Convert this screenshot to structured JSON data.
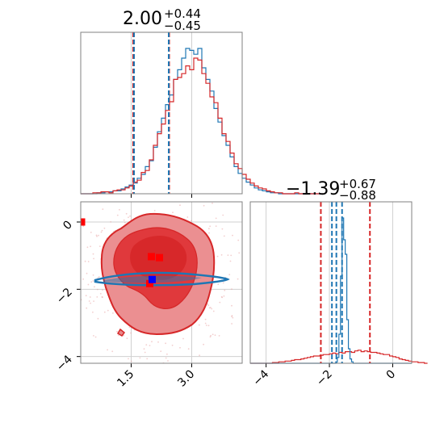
{
  "chart_data": {
    "type": "corner",
    "colors": {
      "red": "#d62728",
      "red_fill": "#e8888a",
      "red_mid": "#e04548",
      "blue": "#1f77b4",
      "marker_red": "#ff0000",
      "marker_blue": "#0000ff",
      "grid": "#d0d0d0"
    },
    "panels": [
      {
        "id": "hist_param1",
        "type": "histogram",
        "title": {
          "main": "2.00",
          "sup": "+0.44",
          "sub": "−0.45"
        },
        "xlim": [
          0.25,
          4.25
        ],
        "xticks": [
          1.5,
          3.0
        ],
        "quantile_lines": {
          "red": [
            1.55,
            2.44
          ],
          "blue": [
            1.57,
            2.43
          ]
        },
        "series": [
          {
            "name": "",
            "color": "#d62728",
            "bins_start": 0.25,
            "bin_width": 0.1,
            "heights": [
              0,
              0,
              0,
              1,
              1,
              2,
              2,
              1,
              3,
              4,
              4,
              6,
              8,
              12,
              14,
              22,
              24,
              35,
              50,
              62,
              72,
              86,
              95,
              118,
              120,
              124,
              132,
              128,
              140,
              138,
              124,
              114,
              100,
              94,
              78,
              62,
              54,
              42,
              31,
              26,
              20,
              15,
              11,
              8,
              6,
              5,
              3,
              2,
              1,
              1,
              0,
              0,
              0,
              1,
              0,
              0,
              0,
              0,
              0,
              0
            ]
          },
          {
            "name": "",
            "color": "#1f77b4",
            "bins_start": 0.25,
            "bin_width": 0.1,
            "heights": [
              0,
              0,
              0,
              0,
              1,
              1,
              2,
              2,
              3,
              3,
              5,
              7,
              9,
              11,
              16,
              20,
              28,
              34,
              48,
              64,
              78,
              92,
              102,
              118,
              128,
              140,
              150,
              148,
              144,
              150,
              130,
              118,
              106,
              88,
              74,
              60,
              50,
              38,
              28,
              21,
              16,
              12,
              9,
              6,
              4,
              3,
              2,
              1,
              1,
              0,
              0,
              0,
              0,
              0,
              0,
              0,
              0,
              0,
              0,
              0
            ]
          }
        ]
      },
      {
        "id": "scatter_param1_param2",
        "type": "contour",
        "xlim": [
          0.25,
          4.25
        ],
        "ylim": [
          -4.2,
          0.6
        ],
        "xticks": [
          1.5,
          3.0
        ],
        "yticks": [
          0,
          -2,
          -4
        ],
        "xtick_labels": [
          "1.5",
          "3.0"
        ],
        "ytick_labels": [
          "0",
          "−2",
          "−4"
        ],
        "markers": [
          {
            "color": "#ff0000",
            "x": 0.27,
            "y": 0.0
          },
          {
            "color": "#ff0000",
            "x": 2.0,
            "y": -1.03
          },
          {
            "color": "#ff0000",
            "x": 2.2,
            "y": -1.06
          },
          {
            "color": "#ff0000",
            "x": 1.96,
            "y": -1.83
          },
          {
            "color": "#0000ff",
            "x": 2.02,
            "y": -1.71
          }
        ]
      },
      {
        "id": "hist_param2",
        "type": "histogram",
        "title": {
          "main": "−1.39",
          "sup": "+0.67",
          "sub": "−0.88"
        },
        "xlim": [
          -4.5,
          0.6
        ],
        "xticks": [
          -4,
          -2,
          0
        ],
        "xtick_labels": [
          "−4",
          "−2",
          "0"
        ],
        "quantile_lines": {
          "red": [
            -2.27,
            -0.72
          ],
          "blue": [
            -1.92,
            -1.78,
            -1.6
          ]
        },
        "series": [
          {
            "name": "",
            "color": "#d62728",
            "bins_start": -4.5,
            "bin_width": 0.1,
            "heights": [
              0,
              0,
              0,
              0,
              0,
              0,
              0,
              1,
              1,
              2,
              2,
              3,
              3,
              4,
              5,
              5,
              6,
              7,
              8,
              9,
              10,
              10,
              11,
              12,
              12,
              13,
              14,
              13,
              15,
              14,
              16,
              16,
              15,
              17,
              18,
              16,
              17,
              16,
              15,
              15,
              14,
              13,
              12,
              12,
              10,
              9,
              8,
              6,
              5,
              4,
              3,
              2,
              2,
              1,
              1,
              0
            ]
          },
          {
            "name": "",
            "color": "#1f77b4",
            "bins_start": -4.5,
            "bin_width": 0.05,
            "heights": [
              0,
              0,
              0,
              0,
              0,
              0,
              0,
              0,
              0,
              0,
              0,
              0,
              0,
              0,
              0,
              0,
              0,
              0,
              0,
              0,
              0,
              0,
              0,
              0,
              0,
              0,
              0,
              0,
              0,
              0,
              0,
              0,
              0,
              0,
              0,
              0,
              0,
              0,
              0,
              0,
              0,
              0,
              0,
              0,
              0,
              0,
              0,
              0,
              0,
              0,
              0,
              0,
              0,
              0,
              2,
              8,
              40,
              120,
              200,
              170,
              150,
              60,
              20,
              6,
              2,
              0,
              0,
              0,
              0,
              0,
              0,
              0,
              0,
              0,
              0,
              0,
              0,
              0,
              0,
              0,
              0,
              0,
              0,
              0,
              0,
              0,
              0,
              0,
              0,
              0,
              0,
              0,
              0,
              0,
              0,
              0,
              0,
              0,
              0,
              0,
              0,
              0
            ]
          }
        ]
      }
    ]
  }
}
